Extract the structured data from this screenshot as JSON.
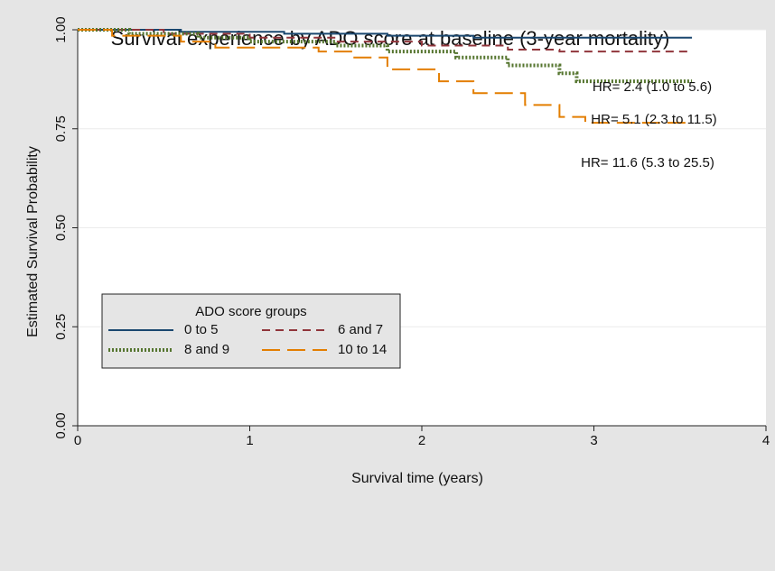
{
  "chart_data": {
    "type": "line",
    "title": "Survival experience by ADO score at baseline (3-year mortality)",
    "x_label": "Survival time (years)",
    "y_label": "Estimated Survival Probability",
    "xlim": [
      0,
      4
    ],
    "xticks": [
      0,
      1,
      2,
      3,
      4
    ],
    "ylim": [
      0,
      1
    ],
    "yticks": [
      {
        "value": 0,
        "label": "0.00"
      },
      {
        "value": 0.25,
        "label": "0.25"
      },
      {
        "value": 0.5,
        "label": "0.50"
      },
      {
        "value": 0.75,
        "label": "0.75"
      },
      {
        "value": 1,
        "label": "1.00"
      }
    ],
    "grid": true,
    "legend": {
      "title": "ADO score groups",
      "position": "bottom-left"
    },
    "series": [
      {
        "name": "0 to 5",
        "color": "#1a476f",
        "style": "solid",
        "x": [
          0,
          0.6,
          0.6,
          1.2,
          1.2,
          1.8,
          1.8,
          2.3,
          2.3,
          3.57
        ],
        "values": [
          1,
          1,
          0.995,
          0.995,
          0.99,
          0.99,
          0.985,
          0.985,
          0.98,
          0.98
        ]
      },
      {
        "name": "6 and 7",
        "color": "#90353b",
        "style": "dash",
        "x": [
          0,
          0.5,
          0.5,
          1,
          1,
          1.5,
          1.5,
          2,
          2,
          2.5,
          2.5,
          2.8,
          2.8,
          3.57
        ],
        "values": [
          1,
          1,
          0.99,
          0.99,
          0.98,
          0.98,
          0.97,
          0.97,
          0.96,
          0.96,
          0.95,
          0.95,
          0.945,
          0.945
        ]
      },
      {
        "name": "8 and 9",
        "color": "#55752f",
        "style": "dot",
        "x": [
          0,
          0.3,
          0.3,
          0.7,
          0.7,
          1,
          1,
          1.5,
          1.5,
          1.8,
          1.8,
          2.2,
          2.2,
          2.5,
          2.5,
          2.8,
          2.8,
          2.9,
          2.9,
          3.57
        ],
        "values": [
          1,
          1,
          0.99,
          0.99,
          0.98,
          0.98,
          0.97,
          0.97,
          0.96,
          0.96,
          0.945,
          0.945,
          0.93,
          0.93,
          0.91,
          0.91,
          0.89,
          0.89,
          0.87,
          0.87
        ]
      },
      {
        "name": "10 to 14",
        "color": "#e37e00",
        "style": "longdash",
        "x": [
          0,
          0.2,
          0.2,
          0.6,
          0.6,
          0.8,
          0.8,
          1.4,
          1.4,
          1.6,
          1.6,
          1.8,
          1.8,
          2.1,
          2.1,
          2.3,
          2.3,
          2.6,
          2.6,
          2.8,
          2.8,
          2.95,
          2.95,
          3.57
        ],
        "values": [
          1,
          1,
          0.985,
          0.985,
          0.97,
          0.97,
          0.955,
          0.955,
          0.945,
          0.945,
          0.93,
          0.93,
          0.9,
          0.9,
          0.87,
          0.87,
          0.84,
          0.84,
          0.81,
          0.81,
          0.78,
          0.78,
          0.765,
          0.765
        ]
      }
    ],
    "annotations": [
      "HR= 2.4 (1.0 to 5.6)",
      "HR= 5.1 (2.3 to 11.5)",
      "HR= 11.6 (5.3 to 25.5)"
    ]
  }
}
